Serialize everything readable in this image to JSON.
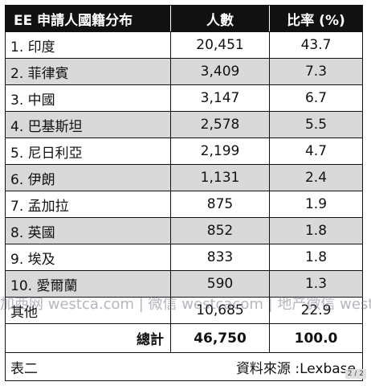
{
  "table": {
    "header": [
      "EE 申請人國籍分布",
      "人數",
      "比率 (%)"
    ],
    "rows": [
      [
        "1. 印度",
        "20,451",
        "43.7"
      ],
      [
        "2. 菲律賓",
        "3,409",
        "7.3"
      ],
      [
        "3. 中國",
        "3,147",
        "6.7"
      ],
      [
        "4. 巴基斯坦",
        "2,578",
        "5.5"
      ],
      [
        "5. 尼日利亞",
        "2,199",
        "4.7"
      ],
      [
        "6. 伊朗",
        "1,131",
        "2.4"
      ],
      [
        "7. 孟加拉",
        "875",
        "1.9"
      ],
      [
        "8. 英國",
        "852",
        "1.8"
      ],
      [
        "9. 埃及",
        "833",
        "1.8"
      ],
      [
        "10. 愛爾蘭",
        "590",
        "1.3"
      ],
      [
        "其他",
        "10,685",
        "22.9"
      ]
    ],
    "total": [
      "總計",
      "46,750",
      "100.0"
    ]
  },
  "footer": {
    "label": "表二",
    "source": "資料來源 :Lexbase"
  },
  "watermark": "加西网 westca.com | 微信 westcacom | 地产微信 westcahouse",
  "page_indicator": "2 / 2"
}
